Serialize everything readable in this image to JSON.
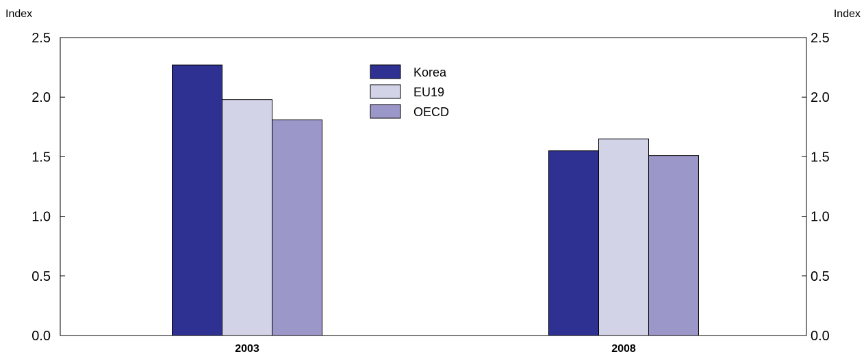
{
  "chart_data": {
    "type": "bar",
    "categories": [
      "2003",
      "2008"
    ],
    "series": [
      {
        "name": "Korea",
        "values": [
          2.27,
          1.55
        ],
        "color": "#2e3192"
      },
      {
        "name": "EU19",
        "values": [
          1.98,
          1.65
        ],
        "color": "#d3d3e8"
      },
      {
        "name": "OECD",
        "values": [
          1.81,
          1.51
        ],
        "color": "#9c97c9"
      }
    ],
    "ylabel_left": "Index",
    "ylabel_right": "Index",
    "ylim": [
      0,
      2.5
    ],
    "yticks": [
      "0.0",
      "0.5",
      "1.0",
      "1.5",
      "2.0",
      "2.5"
    ],
    "grid": false,
    "legend_position": "top-center"
  }
}
